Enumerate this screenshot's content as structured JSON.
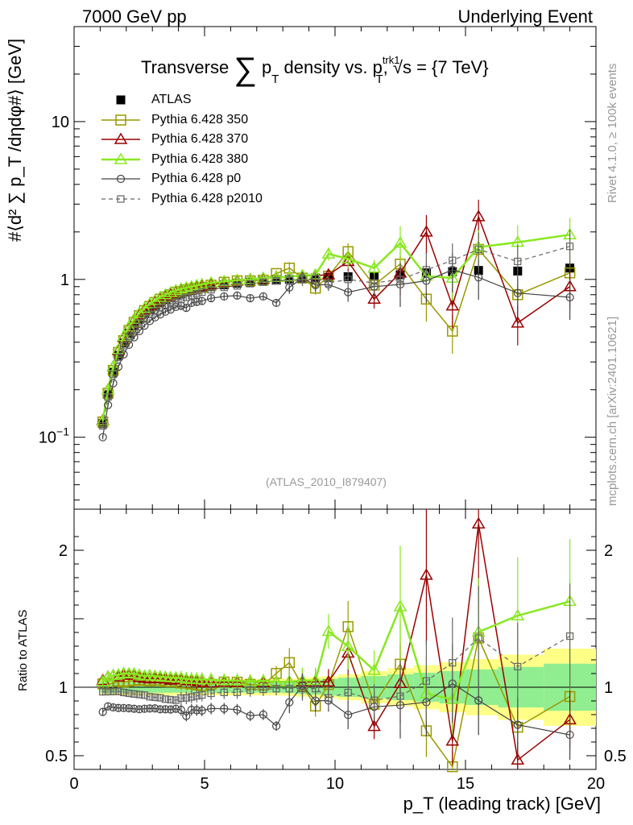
{
  "header": {
    "left": "7000 GeV pp",
    "right": "Underlying Event"
  },
  "title": {
    "pre": "Transverse",
    "sigma": "∑",
    "p": "p",
    "psub": "T",
    "mid": "density vs. p",
    "sup": "trk1",
    "sub2": "T",
    "post": ", √s = {7 TeV}"
  },
  "analysis_label": "(ATLAS_2010_I879407)",
  "side_meta": "Rivet 4.1.0, ≥ 100k events",
  "side_site": "mcplots.cern.ch [arXiv:2401.10621]",
  "y_label_main": "#⟨d² ∑ p_T /dηdφ#⟩ [GeV]",
  "y_label_ratio": "Ratio to ATLAS",
  "x_label": "p_T (leading track) [GeV]",
  "colors": {
    "ATLAS": "#000000",
    "p350": "#999900",
    "p370": "#990000",
    "p380": "#88e820",
    "p0": "#444444",
    "p2010": "#666666",
    "band_inner": "#90ee90",
    "band_outer": "#ffff88"
  },
  "chart_data": {
    "type": "scatter",
    "title": "Transverse ∑p_T density vs. p_T^trk1, √s = {7 TeV}",
    "xlabel": "p_T (leading track) [GeV]",
    "ylabel": "#⟨d² ∑ p_T /dηdφ#⟩ [GeV]",
    "xlim": [
      0,
      20
    ],
    "ylim": [
      0.035,
      40
    ],
    "yscale": "log",
    "ratio_ylim": [
      0.4,
      2.3
    ],
    "ratio_ylabel": "Ratio to ATLAS",
    "x_ticks": [
      0,
      5,
      10,
      15,
      20
    ],
    "y_ticks": [
      "10^-1",
      "1",
      "10"
    ],
    "ratio_ticks": [
      0.5,
      1,
      2
    ],
    "ratio_tick_labels": [
      "0.5",
      "1",
      "2"
    ],
    "legend": [
      "ATLAS",
      "Pythia 6.428 350",
      "Pythia 6.428 370",
      "Pythia 6.428 380",
      "Pythia 6.428 p0",
      "Pythia 6.428 p2010"
    ],
    "x": [
      1.1,
      1.3,
      1.5,
      1.7,
      1.9,
      2.1,
      2.3,
      2.5,
      2.7,
      2.9,
      3.1,
      3.3,
      3.5,
      3.7,
      3.9,
      4.1,
      4.3,
      4.5,
      4.7,
      4.9,
      5.25,
      5.75,
      6.25,
      6.75,
      7.25,
      7.75,
      8.25,
      8.75,
      9.25,
      9.75,
      10.5,
      11.5,
      12.5,
      13.5,
      14.5,
      15.5,
      17.0,
      19.0
    ],
    "series": [
      {
        "name": "ATLAS",
        "values": [
          0.122,
          0.186,
          0.258,
          0.33,
          0.395,
          0.455,
          0.51,
          0.56,
          0.605,
          0.645,
          0.68,
          0.715,
          0.745,
          0.77,
          0.795,
          0.815,
          0.835,
          0.85,
          0.865,
          0.88,
          0.9,
          0.925,
          0.945,
          0.96,
          0.975,
          0.99,
          1.0,
          1.01,
          1.02,
          1.03,
          1.04,
          1.05,
          1.07,
          1.1,
          1.12,
          1.14,
          1.13,
          1.18
        ]
      },
      {
        "name": "Pythia 6.428 350",
        "values": [
          0.125,
          0.19,
          0.265,
          0.345,
          0.41,
          0.475,
          0.535,
          0.59,
          0.635,
          0.675,
          0.715,
          0.75,
          0.775,
          0.8,
          0.83,
          0.84,
          0.86,
          0.87,
          0.88,
          0.89,
          0.92,
          0.96,
          0.98,
          0.98,
          0.99,
          1.09,
          1.18,
          1.02,
          0.88,
          1.05,
          1.5,
          0.92,
          1.25,
          0.75,
          0.47,
          1.55,
          0.8,
          1.1
        ]
      },
      {
        "name": "Pythia 6.428 370",
        "values": [
          0.128,
          0.2,
          0.28,
          0.355,
          0.43,
          0.495,
          0.555,
          0.6,
          0.645,
          0.685,
          0.725,
          0.76,
          0.79,
          0.81,
          0.84,
          0.86,
          0.875,
          0.89,
          0.9,
          0.91,
          0.93,
          0.96,
          0.98,
          1.0,
          1.01,
          1.03,
          1.04,
          1.05,
          1.06,
          1.07,
          1.3,
          0.75,
          1.1,
          2.0,
          0.68,
          2.5,
          0.53,
          0.9
        ]
      },
      {
        "name": "Pythia 6.428 380",
        "values": [
          0.127,
          0.2,
          0.28,
          0.36,
          0.435,
          0.5,
          0.56,
          0.61,
          0.655,
          0.7,
          0.735,
          0.77,
          0.8,
          0.825,
          0.85,
          0.87,
          0.885,
          0.9,
          0.915,
          0.93,
          0.95,
          0.97,
          0.99,
          1.0,
          1.02,
          1.03,
          1.04,
          1.06,
          1.07,
          1.45,
          1.35,
          1.18,
          1.7,
          1.05,
          1.02,
          1.6,
          1.72,
          1.92
        ]
      },
      {
        "name": "Pythia 6.428 p0",
        "values": [
          0.1,
          0.16,
          0.22,
          0.28,
          0.335,
          0.385,
          0.43,
          0.47,
          0.51,
          0.545,
          0.575,
          0.6,
          0.625,
          0.645,
          0.67,
          0.68,
          0.66,
          0.71,
          0.72,
          0.73,
          0.76,
          0.78,
          0.79,
          0.76,
          0.78,
          0.71,
          0.89,
          1.02,
          0.92,
          0.93,
          0.83,
          0.9,
          0.93,
          0.98,
          1.15,
          1.03,
          0.82,
          0.77
        ]
      },
      {
        "name": "Pythia 6.428 p2010",
        "values": [
          0.118,
          0.18,
          0.25,
          0.32,
          0.38,
          0.435,
          0.485,
          0.53,
          0.57,
          0.6,
          0.63,
          0.66,
          0.68,
          0.7,
          0.72,
          0.75,
          0.77,
          0.79,
          0.81,
          0.83,
          0.86,
          0.89,
          0.91,
          0.94,
          0.96,
          0.98,
          0.99,
          1.0,
          1.01,
          0.95,
          1.0,
          0.95,
          1.0,
          1.15,
          1.32,
          1.55,
          1.3,
          1.62
        ]
      }
    ]
  }
}
